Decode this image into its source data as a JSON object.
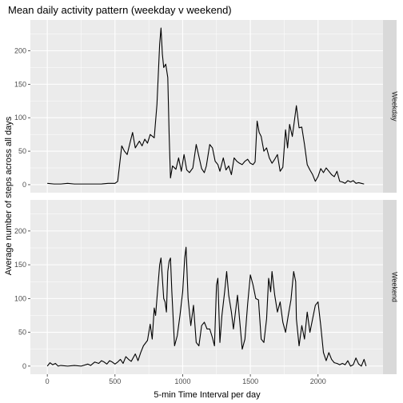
{
  "chart_data": {
    "type": "line",
    "title": "Mean daily activity pattern (weekday v weekend)",
    "xlabel": "5-min Time Interval per day",
    "ylabel": "Average number of steps across all days",
    "xlim": [
      -125,
      2480
    ],
    "ylim": [
      -12,
      246
    ],
    "x_ticks": [
      0,
      500,
      1000,
      1500,
      2000
    ],
    "x_minor_ticks": [
      250,
      750,
      1250,
      1750,
      2250
    ],
    "y_ticks": [
      0,
      50,
      100,
      150,
      200
    ],
    "y_minor_ticks": [
      25,
      75,
      125,
      175,
      225
    ],
    "grid": true,
    "facet_layout": "rows",
    "colors": {
      "panel_bg": "#ebebeb",
      "grid": "#ffffff",
      "strip_bg": "#d9d9d9",
      "line": "#000000",
      "tick_text": "#4d4d4d"
    },
    "panels": [
      {
        "label": "Weekday",
        "points": [
          [
            0,
            2
          ],
          [
            50,
            1
          ],
          [
            100,
            1
          ],
          [
            150,
            2
          ],
          [
            200,
            1
          ],
          [
            250,
            1
          ],
          [
            300,
            1
          ],
          [
            350,
            1
          ],
          [
            400,
            1
          ],
          [
            450,
            2
          ],
          [
            500,
            2
          ],
          [
            520,
            5
          ],
          [
            550,
            58
          ],
          [
            570,
            50
          ],
          [
            590,
            45
          ],
          [
            620,
            70
          ],
          [
            630,
            78
          ],
          [
            650,
            55
          ],
          [
            680,
            65
          ],
          [
            700,
            58
          ],
          [
            720,
            68
          ],
          [
            740,
            62
          ],
          [
            760,
            75
          ],
          [
            790,
            70
          ],
          [
            810,
            120
          ],
          [
            830,
            210
          ],
          [
            840,
            234
          ],
          [
            850,
            195
          ],
          [
            860,
            175
          ],
          [
            875,
            180
          ],
          [
            890,
            160
          ],
          [
            900,
            75
          ],
          [
            910,
            10
          ],
          [
            925,
            28
          ],
          [
            950,
            23
          ],
          [
            970,
            40
          ],
          [
            990,
            20
          ],
          [
            1010,
            45
          ],
          [
            1030,
            22
          ],
          [
            1050,
            18
          ],
          [
            1075,
            25
          ],
          [
            1100,
            60
          ],
          [
            1120,
            42
          ],
          [
            1140,
            24
          ],
          [
            1160,
            18
          ],
          [
            1175,
            28
          ],
          [
            1200,
            60
          ],
          [
            1220,
            55
          ],
          [
            1240,
            35
          ],
          [
            1260,
            30
          ],
          [
            1275,
            20
          ],
          [
            1300,
            40
          ],
          [
            1320,
            22
          ],
          [
            1340,
            28
          ],
          [
            1360,
            15
          ],
          [
            1380,
            40
          ],
          [
            1400,
            35
          ],
          [
            1420,
            32
          ],
          [
            1440,
            30
          ],
          [
            1460,
            35
          ],
          [
            1480,
            38
          ],
          [
            1500,
            32
          ],
          [
            1520,
            30
          ],
          [
            1535,
            34
          ],
          [
            1550,
            95
          ],
          [
            1565,
            78
          ],
          [
            1580,
            72
          ],
          [
            1600,
            50
          ],
          [
            1620,
            55
          ],
          [
            1640,
            40
          ],
          [
            1660,
            32
          ],
          [
            1680,
            38
          ],
          [
            1700,
            45
          ],
          [
            1720,
            20
          ],
          [
            1740,
            26
          ],
          [
            1760,
            82
          ],
          [
            1775,
            55
          ],
          [
            1790,
            90
          ],
          [
            1810,
            72
          ],
          [
            1825,
            95
          ],
          [
            1840,
            118
          ],
          [
            1860,
            85
          ],
          [
            1880,
            86
          ],
          [
            1900,
            60
          ],
          [
            1920,
            30
          ],
          [
            1940,
            22
          ],
          [
            1960,
            15
          ],
          [
            1980,
            5
          ],
          [
            2000,
            12
          ],
          [
            2020,
            24
          ],
          [
            2040,
            18
          ],
          [
            2060,
            25
          ],
          [
            2080,
            20
          ],
          [
            2100,
            15
          ],
          [
            2120,
            12
          ],
          [
            2140,
            20
          ],
          [
            2160,
            5
          ],
          [
            2180,
            4
          ],
          [
            2200,
            2
          ],
          [
            2220,
            6
          ],
          [
            2240,
            4
          ],
          [
            2260,
            6
          ],
          [
            2280,
            2
          ],
          [
            2300,
            3
          ],
          [
            2320,
            2
          ],
          [
            2340,
            1
          ]
        ]
      },
      {
        "label": "Weekend",
        "points": [
          [
            0,
            0
          ],
          [
            20,
            5
          ],
          [
            40,
            2
          ],
          [
            60,
            4
          ],
          [
            80,
            0
          ],
          [
            100,
            1
          ],
          [
            150,
            0
          ],
          [
            200,
            1
          ],
          [
            250,
            0
          ],
          [
            300,
            3
          ],
          [
            320,
            1
          ],
          [
            350,
            6
          ],
          [
            380,
            4
          ],
          [
            400,
            8
          ],
          [
            420,
            6
          ],
          [
            440,
            3
          ],
          [
            460,
            8
          ],
          [
            480,
            6
          ],
          [
            500,
            3
          ],
          [
            520,
            6
          ],
          [
            540,
            10
          ],
          [
            560,
            4
          ],
          [
            580,
            14
          ],
          [
            600,
            10
          ],
          [
            620,
            7
          ],
          [
            650,
            18
          ],
          [
            670,
            8
          ],
          [
            690,
            20
          ],
          [
            710,
            30
          ],
          [
            740,
            38
          ],
          [
            760,
            62
          ],
          [
            775,
            40
          ],
          [
            790,
            86
          ],
          [
            800,
            75
          ],
          [
            830,
            150
          ],
          [
            840,
            160
          ],
          [
            850,
            130
          ],
          [
            860,
            100
          ],
          [
            870,
            95
          ],
          [
            880,
            80
          ],
          [
            890,
            140
          ],
          [
            900,
            155
          ],
          [
            910,
            160
          ],
          [
            920,
            110
          ],
          [
            940,
            30
          ],
          [
            960,
            45
          ],
          [
            980,
            75
          ],
          [
            1000,
            110
          ],
          [
            1015,
            160
          ],
          [
            1025,
            176
          ],
          [
            1040,
            100
          ],
          [
            1060,
            60
          ],
          [
            1080,
            90
          ],
          [
            1100,
            35
          ],
          [
            1120,
            30
          ],
          [
            1140,
            60
          ],
          [
            1160,
            65
          ],
          [
            1180,
            55
          ],
          [
            1200,
            55
          ],
          [
            1220,
            42
          ],
          [
            1235,
            30
          ],
          [
            1250,
            120
          ],
          [
            1260,
            130
          ],
          [
            1275,
            35
          ],
          [
            1290,
            75
          ],
          [
            1310,
            110
          ],
          [
            1325,
            140
          ],
          [
            1340,
            105
          ],
          [
            1360,
            80
          ],
          [
            1375,
            55
          ],
          [
            1390,
            80
          ],
          [
            1405,
            105
          ],
          [
            1420,
            70
          ],
          [
            1440,
            25
          ],
          [
            1460,
            40
          ],
          [
            1480,
            92
          ],
          [
            1500,
            135
          ],
          [
            1520,
            120
          ],
          [
            1540,
            100
          ],
          [
            1560,
            98
          ],
          [
            1580,
            40
          ],
          [
            1600,
            35
          ],
          [
            1620,
            70
          ],
          [
            1635,
            130
          ],
          [
            1650,
            110
          ],
          [
            1660,
            140
          ],
          [
            1680,
            105
          ],
          [
            1700,
            80
          ],
          [
            1720,
            95
          ],
          [
            1740,
            65
          ],
          [
            1760,
            50
          ],
          [
            1780,
            75
          ],
          [
            1800,
            98
          ],
          [
            1820,
            140
          ],
          [
            1835,
            125
          ],
          [
            1840,
            70
          ],
          [
            1860,
            30
          ],
          [
            1880,
            60
          ],
          [
            1900,
            40
          ],
          [
            1920,
            80
          ],
          [
            1940,
            50
          ],
          [
            1960,
            70
          ],
          [
            1980,
            90
          ],
          [
            2000,
            95
          ],
          [
            2020,
            60
          ],
          [
            2040,
            20
          ],
          [
            2060,
            8
          ],
          [
            2080,
            20
          ],
          [
            2100,
            10
          ],
          [
            2120,
            5
          ],
          [
            2140,
            4
          ],
          [
            2160,
            2
          ],
          [
            2180,
            4
          ],
          [
            2200,
            2
          ],
          [
            2220,
            8
          ],
          [
            2240,
            0
          ],
          [
            2260,
            2
          ],
          [
            2280,
            12
          ],
          [
            2300,
            3
          ],
          [
            2320,
            0
          ],
          [
            2340,
            10
          ],
          [
            2355,
            0
          ]
        ]
      }
    ]
  }
}
